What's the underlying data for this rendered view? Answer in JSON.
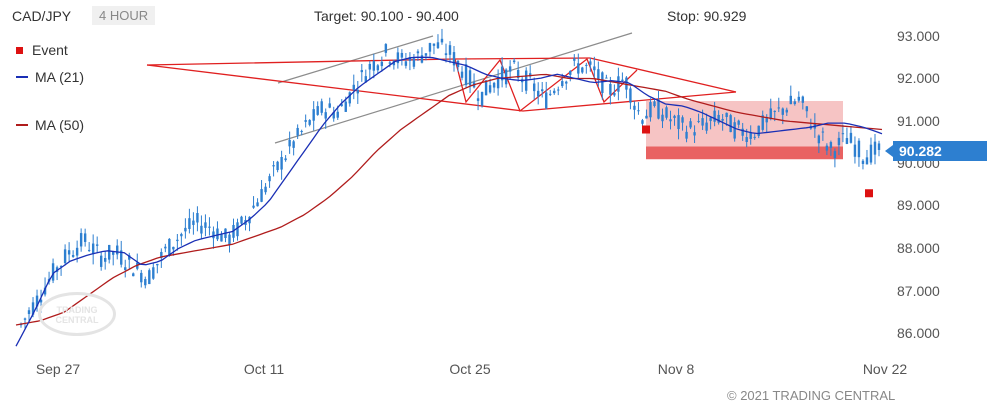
{
  "header": {
    "symbol": "CAD/JPY",
    "timeframe": "4 HOUR",
    "target": "Target: 90.100 - 90.400",
    "stop": "Stop: 90.929"
  },
  "legend": [
    {
      "label": "Event",
      "color": "#dd1111",
      "kind": "square"
    },
    {
      "label": "MA (21)",
      "color": "#1a2fb5",
      "kind": "line"
    },
    {
      "label": "MA (50)",
      "color": "#b01c1c",
      "kind": "line"
    }
  ],
  "price_label": "90.282",
  "copyright": "© 2021 TRADING CENTRAL",
  "watermark": "TRADING CENTRAL",
  "chart_data": {
    "type": "candlestick",
    "title": "CAD/JPY",
    "timeframe": "4 HOUR",
    "x_tick_labels": [
      "Sep 27",
      "Oct 11",
      "Oct 25",
      "Nov 8",
      "Nov 22"
    ],
    "y_tick_labels": [
      "86.000",
      "87.000",
      "88.000",
      "89.000",
      "90.000",
      "91.000",
      "92.000",
      "93.000"
    ],
    "ylim": [
      85.6,
      93.2
    ],
    "y_axis_side": "right",
    "last_price": 90.282,
    "target_range": [
      90.1,
      90.4
    ],
    "stop": 90.929,
    "close_path": [
      86.2,
      86.8,
      87.4,
      87.9,
      88.2,
      87.8,
      87.9,
      87.6,
      87.3,
      87.9,
      88.3,
      88.6,
      88.5,
      88.2,
      88.6,
      89.2,
      89.8,
      90.4,
      90.9,
      91.3,
      91.2,
      91.8,
      92.3,
      92.6,
      92.4,
      92.5,
      92.8,
      92.6,
      92.1,
      91.6,
      92.0,
      92.2,
      91.9,
      91.5,
      92.0,
      92.3,
      92.2,
      91.7,
      92.0,
      91.1,
      91.3,
      91.0,
      90.8,
      90.9,
      91.1,
      90.8,
      90.7,
      91.0,
      91.3,
      91.5,
      90.8,
      90.3,
      90.6,
      90.2,
      90.3
    ],
    "ma21_path": [
      85.7,
      86.5,
      87.4,
      87.7,
      87.85,
      87.95,
      87.9,
      87.6,
      87.7,
      88.0,
      88.2,
      88.3,
      88.4,
      88.7,
      89.1,
      89.7,
      90.3,
      90.9,
      91.4,
      91.8,
      92.1,
      92.4,
      92.5,
      92.5,
      92.4,
      92.3,
      92.1,
      92.0,
      91.95,
      92.0,
      92.1,
      92.0,
      91.9,
      91.95,
      91.9,
      91.6,
      91.4,
      91.35,
      91.2,
      91.0,
      90.8,
      90.7,
      90.75,
      90.8,
      90.85,
      90.95,
      90.95,
      90.85,
      90.7
    ],
    "ma50_path": [
      86.2,
      86.3,
      86.5,
      86.9,
      87.3,
      87.6,
      87.8,
      87.9,
      88.0,
      88.1,
      88.3,
      88.5,
      88.8,
      89.2,
      89.7,
      90.3,
      90.8,
      91.2,
      91.6,
      91.85,
      92.0,
      92.05,
      92.1,
      92.0,
      92.0,
      91.9,
      91.8,
      91.7,
      91.5,
      91.35,
      91.2,
      91.1,
      91.0,
      90.95,
      90.9,
      90.85,
      90.8
    ],
    "events": [
      {
        "near_x": "Nov 8",
        "price": 90.8
      },
      {
        "near_x": "Nov 22",
        "price": 89.3
      }
    ],
    "grid": false
  }
}
